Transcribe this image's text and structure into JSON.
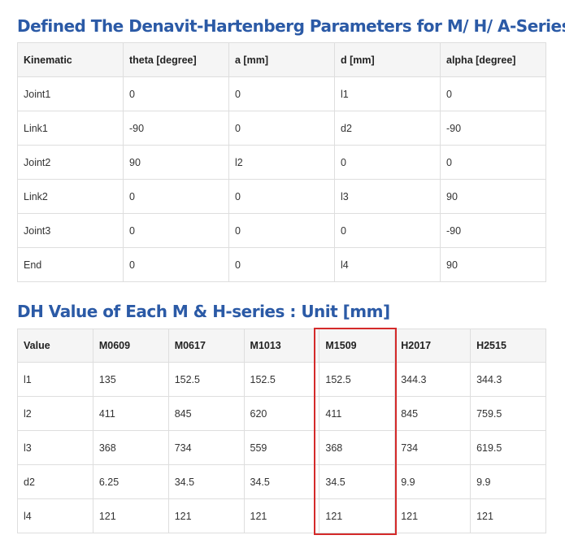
{
  "section1": {
    "title": "Defined The Denavit-Hartenberg Parameters for M/ H/ A-Series",
    "headers": [
      "Kinematic",
      "theta [degree]",
      "a [mm]",
      "d [mm]",
      "alpha [degree]"
    ],
    "rows": [
      [
        "Joint1",
        "0",
        "0",
        "l1",
        "0"
      ],
      [
        "Link1",
        "-90",
        "0",
        "d2",
        "-90"
      ],
      [
        "Joint2",
        "90",
        "l2",
        "0",
        "0"
      ],
      [
        "Link2",
        "0",
        "0",
        "l3",
        "90"
      ],
      [
        "Joint3",
        "0",
        "0",
        "0",
        "-90"
      ],
      [
        "End",
        "0",
        "0",
        "l4",
        "90"
      ]
    ]
  },
  "section2": {
    "title": "DH Value of Each M & H-series : Unit [mm]",
    "headers": [
      "Value",
      "M0609",
      "M0617",
      "M1013",
      "M1509",
      "H2017",
      "H2515"
    ],
    "rows": [
      [
        "l1",
        "135",
        "152.5",
        "152.5",
        "152.5",
        "344.3",
        "344.3"
      ],
      [
        "l2",
        "411",
        "845",
        "620",
        "411",
        "845",
        "759.5"
      ],
      [
        "l3",
        "368",
        "734",
        "559",
        "368",
        "734",
        "619.5"
      ],
      [
        "d2",
        "6.25",
        "34.5",
        "34.5",
        "34.5",
        "9.9",
        "9.9"
      ],
      [
        "l4",
        "121",
        "121",
        "121",
        "121",
        "121",
        "121"
      ]
    ],
    "highlighted_column": "M1509",
    "highlight_color": "#d42a2a"
  },
  "colors": {
    "title": "#2b5aa6",
    "header_background": "#f5f5f5",
    "border": "#dedede"
  }
}
